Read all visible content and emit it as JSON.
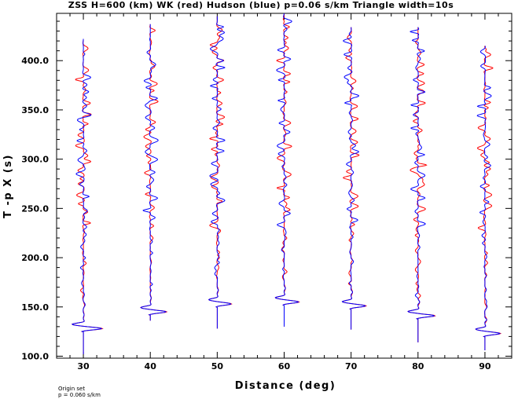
{
  "chart_data": {
    "type": "line",
    "title": "ZSS H=600 (km) WK (red) Hudson (blue) p=0.06 s/km Triangle width=10s",
    "xlabel": "Distance (deg)",
    "ylabel": "T -p X (s)",
    "xlim": [
      26,
      94
    ],
    "ylim": [
      98,
      448
    ],
    "x_ticks": [
      30,
      40,
      50,
      60,
      70,
      80,
      90
    ],
    "y_ticks": [
      100,
      150,
      200,
      250,
      300,
      350,
      400
    ],
    "x_tick_labels": [
      "30",
      "40",
      "50",
      "60",
      "70",
      "80",
      "90"
    ],
    "y_tick_labels": [
      "100.0",
      "150.0",
      "200.0",
      "250.0",
      "300.0",
      "350.0",
      "400.0"
    ],
    "grid": false,
    "series_colors": {
      "WK": "#ff0000",
      "Hudson": "#0000ff"
    },
    "traces": [
      {
        "distance": 30,
        "start": 102,
        "end": 422,
        "onset": 128,
        "main_amp": 2.8
      },
      {
        "distance": 40,
        "start": 136,
        "end": 437,
        "onset": 145,
        "main_amp": 2.4
      },
      {
        "distance": 50,
        "start": 128,
        "end": 445,
        "onset": 153,
        "main_amp": 2.1
      },
      {
        "distance": 60,
        "start": 130,
        "end": 448,
        "onset": 155,
        "main_amp": 2.2
      },
      {
        "distance": 70,
        "start": 127,
        "end": 434,
        "onset": 151,
        "main_amp": 2.2
      },
      {
        "distance": 80,
        "start": 114,
        "end": 434,
        "onset": 141,
        "main_amp": 2.5
      },
      {
        "distance": 90,
        "start": 106,
        "end": 415,
        "onset": 123,
        "main_amp": 2.3
      }
    ]
  },
  "footer": {
    "line1": "Origin set",
    "line2": "p = 0.060 s/km"
  }
}
